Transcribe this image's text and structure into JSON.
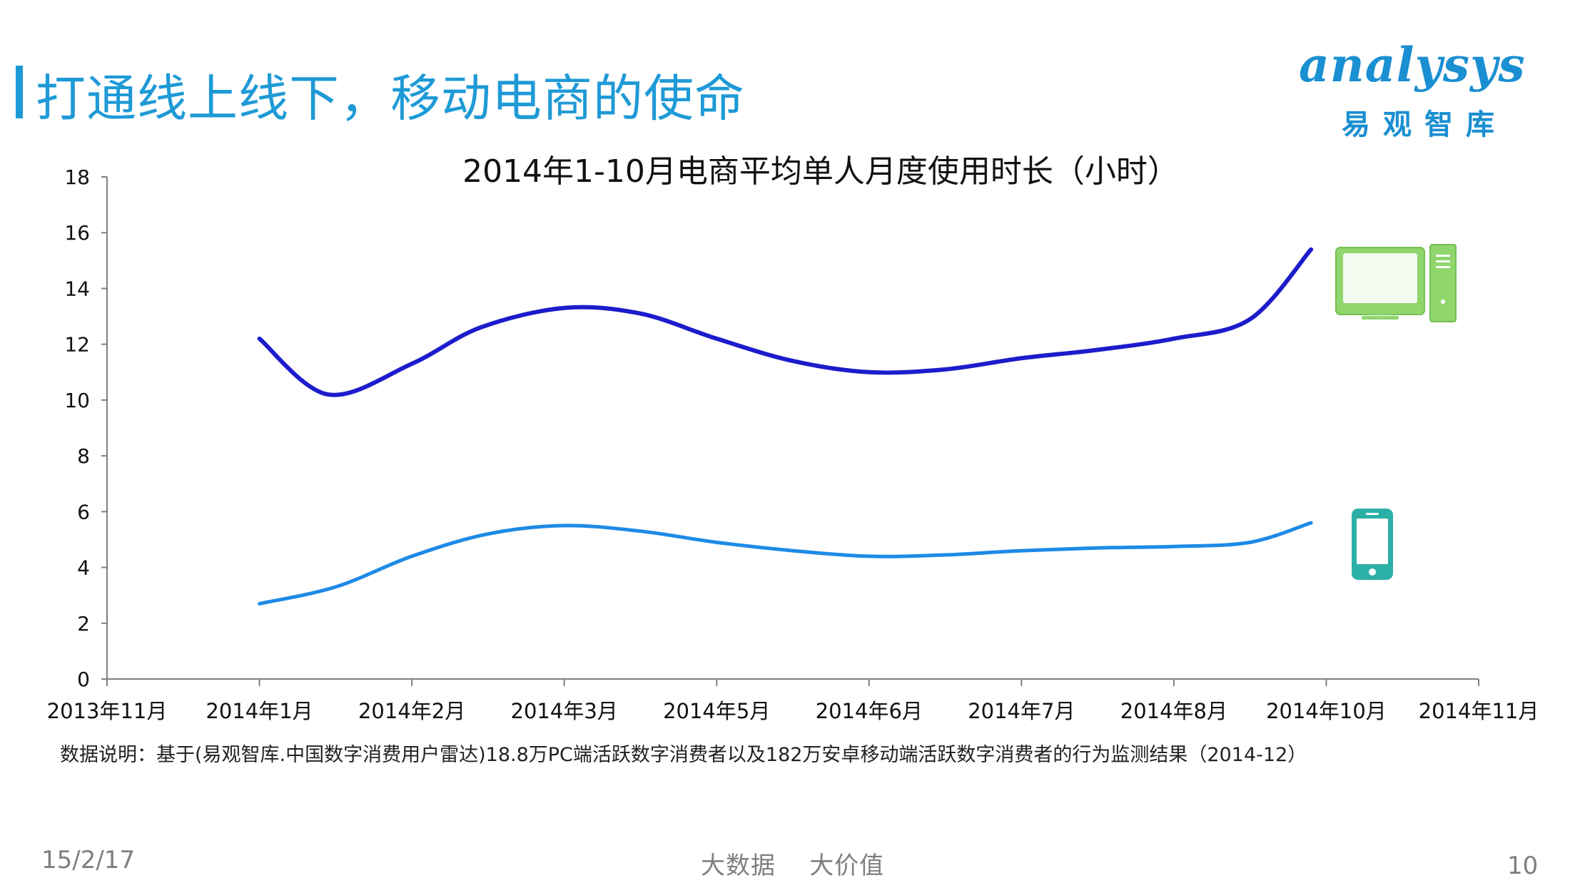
{
  "header": {
    "title": "打通线上线下，移动电商的使命"
  },
  "logo": {
    "name": "analysys",
    "subtitle": "易观智库"
  },
  "chart_data": {
    "type": "line",
    "title": "2014年1-10月电商平均单人月度使用时长（小时）",
    "xlabel": "",
    "ylabel": "",
    "ylim": [
      0,
      18
    ],
    "yticks": [
      0,
      2,
      4,
      6,
      8,
      10,
      12,
      14,
      16,
      18
    ],
    "categories": [
      "2013年11月",
      "2014年1月",
      "2014年2月",
      "2014年3月",
      "2014年5月",
      "2014年6月",
      "2014年7月",
      "2014年8月",
      "2014年10月",
      "2014年11月"
    ],
    "grid": false,
    "legend": "icons at right end of series (PC monitor for upper series, smartphone for lower series)",
    "series": [
      {
        "icon": "desktop-computer-icon",
        "color": "#1c1ccc",
        "x": [
          1,
          1.45,
          2,
          2.45,
          3,
          3.5,
          4,
          4.5,
          5,
          5.5,
          6,
          6.5,
          7,
          7.5,
          7.9
        ],
        "values": [
          12.2,
          10.2,
          11.3,
          12.6,
          13.3,
          13.1,
          12.2,
          11.4,
          11.0,
          11.1,
          11.5,
          11.8,
          12.2,
          12.9,
          15.4
        ]
      },
      {
        "icon": "smartphone-icon",
        "color": "#1e8ae6",
        "x": [
          1,
          1.5,
          2,
          2.5,
          3,
          3.5,
          4,
          4.5,
          5,
          5.5,
          6,
          6.5,
          7,
          7.5,
          7.9
        ],
        "values": [
          2.7,
          3.3,
          4.4,
          5.2,
          5.5,
          5.3,
          4.9,
          4.6,
          4.4,
          4.45,
          4.6,
          4.7,
          4.75,
          4.9,
          5.6
        ]
      }
    ]
  },
  "source": "数据说明：基于(易观智库.中国数字消费用户雷达)18.8万PC端活跃数字消费者以及182万安卓移动端活跃数字消费者的行为监测结果（2014-12）",
  "footer": {
    "date": "15/2/17",
    "slogan": "大数据    大价值",
    "page_number": "10"
  },
  "colors": {
    "accent": "#1e9ad6",
    "pc_series": "#1c1ccc",
    "mobile_series": "#1e8ae6",
    "pc_icon": "#8fd66c",
    "phone_icon": "#2bb0a8"
  }
}
